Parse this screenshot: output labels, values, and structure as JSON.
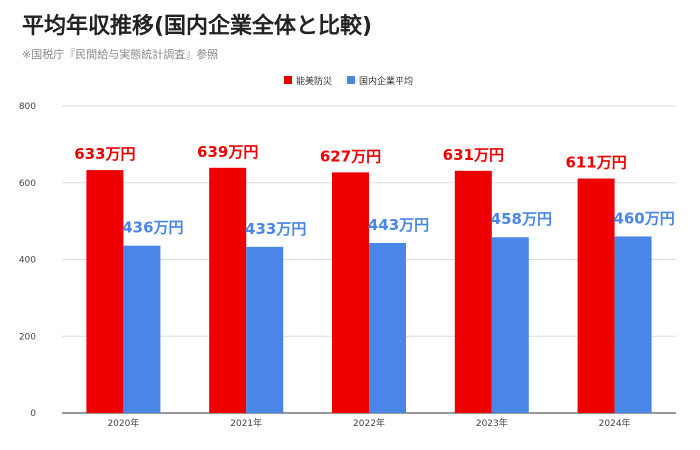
{
  "title": "平均年収推移(国内企業全体と比較)",
  "subtitle": "※国税庁『民間給与実態統計調査』参照",
  "colors": {
    "series_0": "#ee0000",
    "series_1": "#4a86e8"
  },
  "chart_data": {
    "type": "bar",
    "categories": [
      "2020年",
      "2021年",
      "2022年",
      "2023年",
      "2024年"
    ],
    "series": [
      {
        "name": "能美防災",
        "values": [
          633,
          639,
          627,
          631,
          611
        ],
        "labels": [
          "633万円",
          "639万円",
          "627万円",
          "631万円",
          "611万円"
        ]
      },
      {
        "name": "国内企業平均",
        "values": [
          436,
          433,
          443,
          458,
          460
        ],
        "labels": [
          "436万円",
          "433万円",
          "443万円",
          "458万円",
          "460万円"
        ]
      }
    ],
    "yticks": [
      "0",
      "200",
      "400",
      "600",
      "800"
    ],
    "ylim": [
      0,
      800
    ],
    "grid": true,
    "legend": "top-center"
  }
}
